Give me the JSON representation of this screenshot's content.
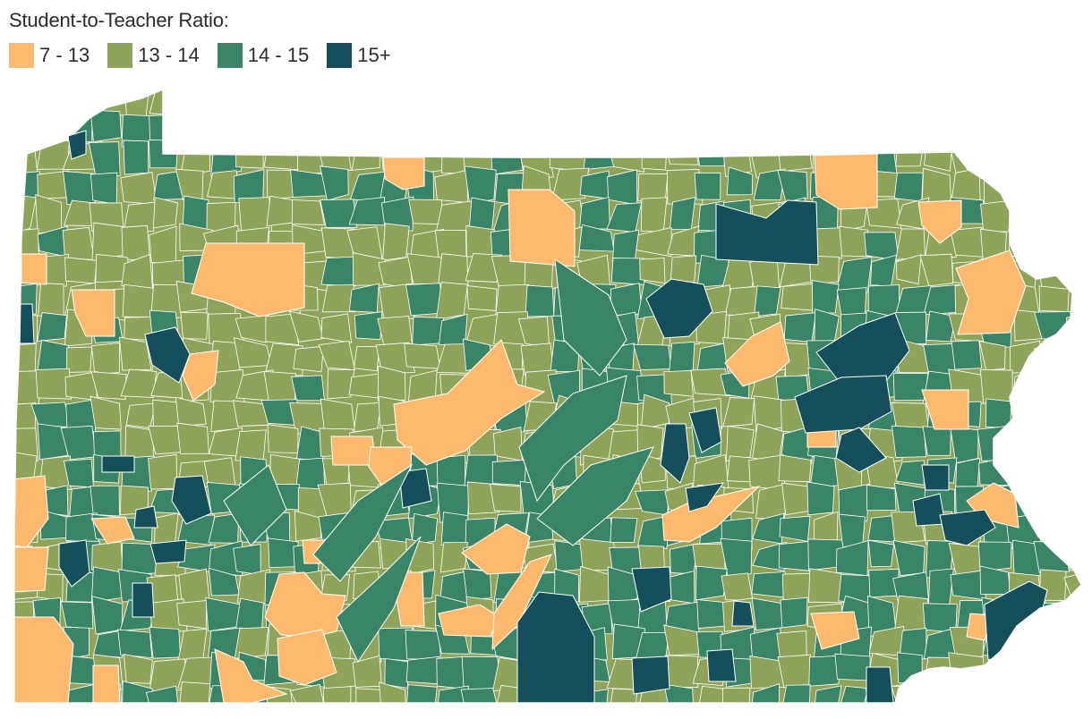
{
  "legend": {
    "title": "Student-to-Teacher Ratio:",
    "items": [
      {
        "label": "7 - 13",
        "color": "#fdb96e"
      },
      {
        "label": "13 - 14",
        "color": "#8fa45a"
      },
      {
        "label": "14 - 15",
        "color": "#3a8467"
      },
      {
        "label": "15+",
        "color": "#154f5c"
      }
    ]
  },
  "map": {
    "subject": "Pennsylvania school districts",
    "border_color": "#ffffff"
  }
}
